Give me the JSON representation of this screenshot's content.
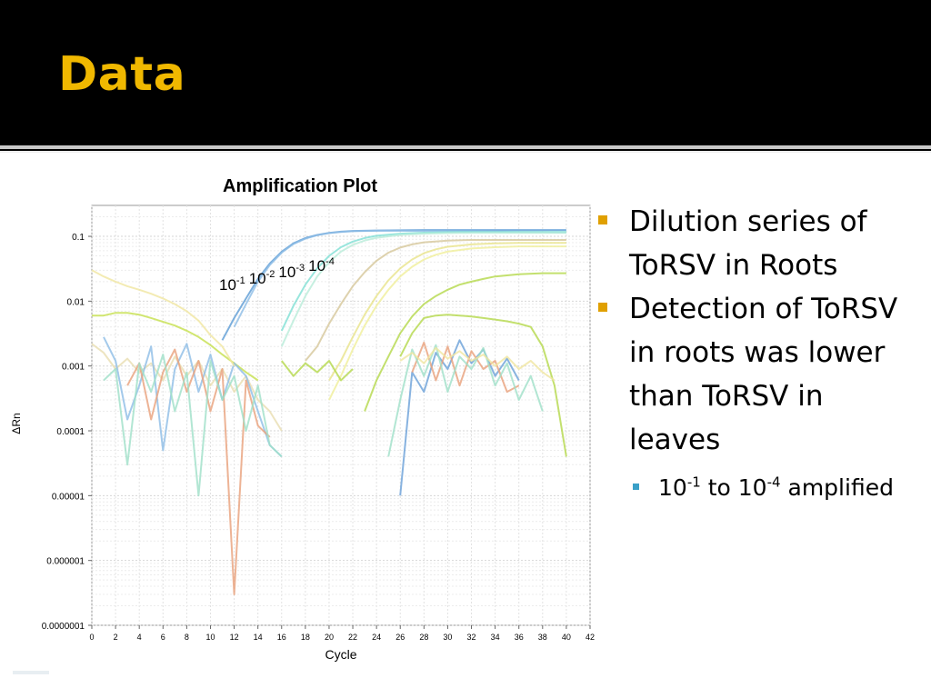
{
  "slide": {
    "title": "Data",
    "bullets": [
      {
        "lines": [
          "Dilution series of",
          "ToRSV in Roots"
        ]
      },
      {
        "lines": [
          "Detection of ToRSV",
          "in roots was lower",
          "than ToRSV in",
          "leaves"
        ]
      }
    ],
    "sub_bullet": {
      "base1": "10",
      "exp1": "-1",
      "mid": " to 10",
      "exp2": "-4",
      "tail": " amplified"
    },
    "colors": {
      "title": "#F0B800",
      "bullet": "#E0A000",
      "sub_bullet": "#3AA0C8"
    }
  },
  "chart_data": {
    "type": "line",
    "title": "Amplification Plot",
    "xlabel": "Cycle",
    "ylabel": "ΔRn",
    "xlim": [
      0,
      42
    ],
    "ylim": [
      1e-07,
      0.3
    ],
    "yscale": "log",
    "grid": true,
    "x_ticks": [
      0,
      2,
      4,
      6,
      8,
      10,
      12,
      14,
      16,
      18,
      20,
      22,
      24,
      26,
      28,
      30,
      32,
      34,
      36,
      38,
      40,
      42
    ],
    "y_ticks": [
      {
        "value": 0.1,
        "label": "0.1"
      },
      {
        "value": 0.01,
        "label": "0.01"
      },
      {
        "value": 0.001,
        "label": "0.001"
      },
      {
        "value": 0.0001,
        "label": "0.0001"
      },
      {
        "value": 1e-05,
        "label": "0.00001"
      },
      {
        "value": 1e-06,
        "label": "0.000001"
      },
      {
        "value": 1e-07,
        "label": "0.0000001"
      }
    ],
    "annotation": {
      "base": "10",
      "exps": [
        "-1",
        "-2",
        "-3",
        "-4"
      ]
    },
    "series": [
      {
        "color": "#5b9bd5",
        "x": [
          11,
          12,
          13,
          14,
          15,
          16,
          17,
          18,
          19,
          20,
          21,
          22,
          24,
          26,
          28,
          30,
          32,
          34,
          36,
          38,
          40
        ],
        "y": [
          0.0025,
          0.0055,
          0.011,
          0.022,
          0.038,
          0.058,
          0.078,
          0.094,
          0.105,
          0.113,
          0.118,
          0.121,
          0.123,
          0.124,
          0.125,
          0.125,
          0.125,
          0.125,
          0.125,
          0.125,
          0.125
        ]
      },
      {
        "color": "#8dbde6",
        "x": [
          12,
          13,
          14,
          15,
          16,
          17,
          18,
          19,
          20,
          21,
          22,
          24,
          26,
          28,
          30,
          32,
          34,
          36,
          38,
          40
        ],
        "y": [
          0.004,
          0.009,
          0.02,
          0.036,
          0.056,
          0.076,
          0.092,
          0.104,
          0.112,
          0.117,
          0.12,
          0.122,
          0.122,
          0.121,
          0.12,
          0.119,
          0.118,
          0.117,
          0.116,
          0.115
        ]
      },
      {
        "color": "#7fe0d4",
        "x": [
          16,
          17,
          18,
          19,
          20,
          21,
          22,
          23,
          24,
          26,
          28,
          30,
          32,
          34,
          36,
          38,
          40
        ],
        "y": [
          0.0035,
          0.0085,
          0.018,
          0.032,
          0.05,
          0.068,
          0.083,
          0.094,
          0.102,
          0.11,
          0.114,
          0.116,
          0.117,
          0.117,
          0.117,
          0.117,
          0.117
        ]
      },
      {
        "color": "#b9ecd9",
        "x": [
          16,
          17,
          18,
          19,
          20,
          21,
          22,
          23,
          24,
          26,
          28,
          30,
          32,
          34,
          36,
          38,
          40
        ],
        "y": [
          0.002,
          0.005,
          0.012,
          0.024,
          0.04,
          0.058,
          0.074,
          0.086,
          0.095,
          0.105,
          0.11,
          0.112,
          0.113,
          0.113,
          0.113,
          0.113,
          0.113
        ]
      },
      {
        "color": "#d6c79a",
        "x": [
          18,
          19,
          20,
          21,
          22,
          23,
          24,
          25,
          26,
          27,
          28,
          30,
          32,
          34,
          36,
          38,
          40
        ],
        "y": [
          0.0012,
          0.002,
          0.0045,
          0.009,
          0.017,
          0.028,
          0.042,
          0.056,
          0.067,
          0.075,
          0.081,
          0.086,
          0.088,
          0.088,
          0.088,
          0.088,
          0.088
        ]
      },
      {
        "color": "#e8e38a",
        "x": [
          20,
          21,
          22,
          23,
          24,
          25,
          26,
          27,
          28,
          29,
          30,
          32,
          34,
          36,
          38,
          40
        ],
        "y": [
          0.0006,
          0.0012,
          0.0028,
          0.0062,
          0.012,
          0.021,
          0.032,
          0.044,
          0.055,
          0.063,
          0.069,
          0.075,
          0.078,
          0.079,
          0.079,
          0.079
        ]
      },
      {
        "color": "#f0ef9a",
        "x": [
          20,
          21,
          22,
          23,
          24,
          25,
          26,
          27,
          28,
          29,
          30,
          32,
          34,
          36,
          38,
          40
        ],
        "y": [
          0.0003,
          0.0007,
          0.0018,
          0.0042,
          0.0085,
          0.015,
          0.024,
          0.034,
          0.044,
          0.052,
          0.058,
          0.065,
          0.068,
          0.07,
          0.07,
          0.07
        ]
      },
      {
        "color": "#b4d84a",
        "x": [
          23,
          24,
          25,
          26,
          27,
          28,
          29,
          30,
          31,
          32,
          33,
          34,
          36,
          38,
          40
        ],
        "y": [
          0.0002,
          0.0006,
          0.0014,
          0.0032,
          0.0058,
          0.009,
          0.012,
          0.015,
          0.018,
          0.02,
          0.022,
          0.024,
          0.026,
          0.027,
          0.027
        ]
      },
      {
        "color": "#c6e04c",
        "x": [
          0,
          1,
          2,
          3,
          4,
          5,
          6,
          7,
          8,
          9,
          10,
          11,
          12,
          13,
          14
        ],
        "y": [
          0.006,
          0.006,
          0.0066,
          0.0066,
          0.0062,
          0.0055,
          0.0048,
          0.0042,
          0.0035,
          0.0028,
          0.0021,
          0.0015,
          0.0011,
          0.0008,
          0.0006
        ]
      },
      {
        "color": "#b4d84a",
        "x": [
          26,
          27,
          28,
          29,
          30,
          31,
          32,
          33,
          34,
          35,
          36,
          37,
          38,
          39,
          40
        ],
        "y": [
          0.0014,
          0.0032,
          0.0055,
          0.006,
          0.0062,
          0.006,
          0.0058,
          0.0055,
          0.0052,
          0.0049,
          0.0045,
          0.004,
          0.002,
          0.0005,
          4e-05
        ]
      },
      {
        "color": "#e8ddb0",
        "x": [
          0,
          1,
          2,
          3,
          4,
          5,
          6,
          7,
          8,
          9,
          10,
          11,
          12,
          13,
          14,
          15,
          16
        ],
        "y": [
          0.0022,
          0.0016,
          0.0009,
          0.0013,
          0.0008,
          0.0011,
          0.0006,
          0.0014,
          0.0007,
          0.0012,
          0.0005,
          0.0009,
          0.0004,
          0.0007,
          0.0003,
          0.0002,
          0.0001
        ]
      },
      {
        "color": "#8dbde6",
        "x": [
          1,
          2,
          3,
          4,
          5,
          6,
          7,
          8,
          9,
          10,
          11,
          12,
          13,
          14,
          15,
          16
        ],
        "y": [
          0.0028,
          0.0012,
          0.00015,
          0.0005,
          0.002,
          5e-05,
          0.0009,
          0.0022,
          0.0004,
          0.0015,
          0.0003,
          0.0011,
          0.0007,
          0.0002,
          6e-05,
          4e-05
        ]
      },
      {
        "color": "#e8a07a",
        "x": [
          3,
          4,
          5,
          6,
          7,
          8,
          9,
          10,
          11,
          12,
          13,
          14,
          15
        ],
        "y": [
          0.0005,
          0.0011,
          0.00015,
          0.0008,
          0.0018,
          0.0004,
          0.0012,
          0.0002,
          0.0009,
          3e-07,
          0.0006,
          0.00012,
          8e-05
        ]
      },
      {
        "color": "#9fe0c8",
        "x": [
          1,
          2,
          3,
          4,
          5,
          6,
          7,
          8,
          9,
          10,
          11,
          12,
          13,
          14,
          15,
          16
        ],
        "y": [
          0.0006,
          0.0009,
          3e-05,
          0.0011,
          0.0004,
          0.0015,
          0.0002,
          0.0008,
          1e-05,
          0.0012,
          0.0003,
          0.0007,
          0.0001,
          0.0005,
          6e-05,
          4e-05
        ]
      },
      {
        "color": "#f0e6a0",
        "x": [
          0,
          1,
          2,
          3,
          4,
          5,
          6,
          7,
          8,
          9,
          10,
          11,
          12
        ],
        "y": [
          0.03,
          0.024,
          0.02,
          0.017,
          0.015,
          0.013,
          0.011,
          0.009,
          0.007,
          0.005,
          0.003,
          0.002,
          0.001
        ]
      },
      {
        "color": "#6aa0d8",
        "x": [
          26,
          27,
          28,
          29,
          30,
          31,
          32,
          33,
          34,
          35,
          36
        ],
        "y": [
          1e-05,
          0.0008,
          0.0004,
          0.0016,
          0.0009,
          0.0025,
          0.0011,
          0.0018,
          0.0007,
          0.0013,
          0.0006
        ]
      },
      {
        "color": "#e8a07a",
        "x": [
          27,
          28,
          29,
          30,
          31,
          32,
          33,
          34,
          35,
          36
        ],
        "y": [
          0.0008,
          0.0023,
          0.0006,
          0.002,
          0.0005,
          0.0017,
          0.0009,
          0.0012,
          0.0004,
          0.0005
        ]
      },
      {
        "color": "#9fe0c8",
        "x": [
          25,
          26,
          27,
          28,
          29,
          30,
          31,
          32,
          33,
          34,
          35,
          36,
          37,
          38
        ],
        "y": [
          4e-05,
          0.0003,
          0.0018,
          0.0007,
          0.0021,
          0.0004,
          0.0014,
          0.0009,
          0.0019,
          0.0005,
          0.0011,
          0.0003,
          0.0007,
          0.0002
        ]
      },
      {
        "color": "#f0e6a0",
        "x": [
          26,
          27,
          28,
          29,
          30,
          31,
          32,
          33,
          34,
          35,
          36,
          37,
          38,
          39
        ],
        "y": [
          0.0012,
          0.0016,
          0.0011,
          0.0019,
          0.0013,
          0.0017,
          0.0012,
          0.0015,
          0.001,
          0.0014,
          0.0009,
          0.0012,
          0.0008,
          0.0006
        ]
      },
      {
        "color": "#b4d84a",
        "x": [
          16,
          17,
          18,
          19,
          20,
          21,
          22
        ],
        "y": [
          0.0012,
          0.0007,
          0.0011,
          0.0008,
          0.0012,
          0.0006,
          0.0009
        ]
      }
    ]
  }
}
